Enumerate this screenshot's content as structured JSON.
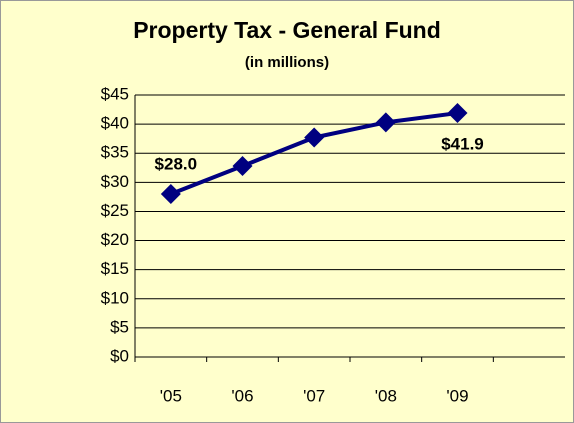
{
  "chart_data": {
    "type": "line",
    "title": "Property Tax - General Fund",
    "subtitle": "(in millions)",
    "categories": [
      "'05",
      "'06",
      "'07",
      "'08",
      "'09",
      null
    ],
    "series": [
      {
        "name": "Property Tax",
        "color": "#000080",
        "values": [
          28.0,
          32.8,
          37.7,
          40.3,
          41.9,
          null
        ],
        "value_labels": [
          "$28.0",
          null,
          null,
          null,
          "$41.9",
          null
        ]
      }
    ],
    "ylim": [
      0,
      45
    ],
    "yticks": [
      {
        "value": 0,
        "label": "$0"
      },
      {
        "value": 5,
        "label": "$5"
      },
      {
        "value": 10,
        "label": "$10"
      },
      {
        "value": 15,
        "label": "$15"
      },
      {
        "value": 20,
        "label": "$20"
      },
      {
        "value": 25,
        "label": "$25"
      },
      {
        "value": 30,
        "label": "$30"
      },
      {
        "value": 35,
        "label": "$35"
      },
      {
        "value": 40,
        "label": "$40"
      },
      {
        "value": 45,
        "label": "$45"
      }
    ],
    "grid": true
  }
}
